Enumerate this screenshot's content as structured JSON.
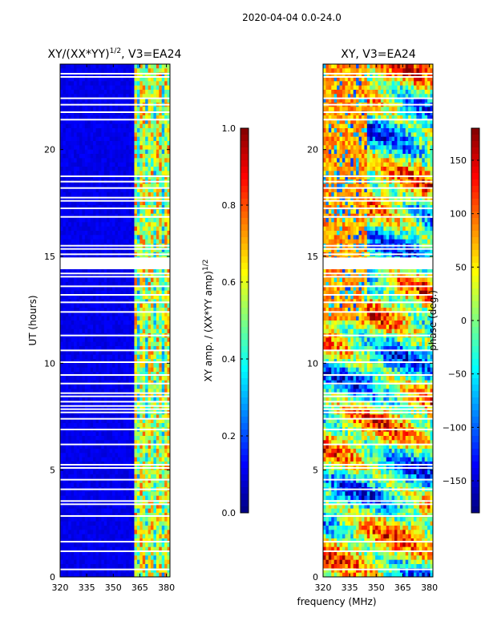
{
  "figure": {
    "suptitle": "2020-04-04 0.0-24.0",
    "xlabel": "frequency (MHz)",
    "ylabel": "UT (hours)"
  },
  "chart_data": [
    {
      "type": "heatmap",
      "name": "amplitude-ratio",
      "title": "XY/(XX*YY)",
      "title_sup": "1/2",
      "title_suffix": ", V3=EA24",
      "xlim": [
        320,
        382
      ],
      "ylim": [
        0,
        24
      ],
      "xticks": [
        320,
        335,
        350,
        365,
        380
      ],
      "yticks": [
        0,
        5,
        10,
        15,
        20
      ],
      "ytick_labels": [
        "0",
        "5",
        "10",
        "15",
        "20"
      ],
      "colormap": "jet",
      "colorbar": {
        "label": "XY amp. / (XX*YY amp)",
        "label_sup": "1/2",
        "range": [
          0.0,
          1.0
        ],
        "ticks": [
          0.0,
          0.2,
          0.4,
          0.6,
          0.8,
          1.0
        ],
        "tick_labels": [
          "0.0",
          "0.2",
          "0.4",
          "0.6",
          "0.8",
          "1.0"
        ]
      },
      "low_band_level": 0.08,
      "high_band_start_mhz": 362,
      "high_band_level_range": [
        0.25,
        0.75
      ],
      "flagged_hours": [
        0.35,
        1.2,
        1.65,
        2.85,
        3.4,
        3.55,
        4.1,
        4.55,
        5.1,
        5.25,
        6.2,
        6.9,
        7.4,
        7.7,
        7.85,
        8.0,
        8.2,
        8.45,
        8.6,
        9.05,
        9.45,
        10.05,
        10.6,
        11.3,
        12.4,
        12.85,
        13.2,
        13.6,
        14.05,
        14.2,
        15.1,
        15.35,
        15.5,
        16.85,
        17.25,
        17.6,
        17.75,
        18.2,
        18.5,
        18.75,
        21.4,
        21.75,
        22.1,
        22.4,
        23.4,
        23.55
      ],
      "flagged_block_hours": [
        14.4,
        14.95
      ]
    },
    {
      "type": "heatmap",
      "name": "xy-phase",
      "title": "XY, V3=EA24",
      "xlim": [
        320,
        382
      ],
      "ylim": [
        0,
        24
      ],
      "xticks": [
        320,
        335,
        350,
        365,
        380
      ],
      "yticks": [
        0,
        5,
        10,
        15,
        20
      ],
      "ytick_labels": [
        "0",
        "5",
        "10",
        "15",
        "20"
      ],
      "colormap": "jet",
      "colorbar": {
        "label": "phase (deg.)",
        "range": [
          -180,
          180
        ],
        "ticks": [
          -150,
          -100,
          -50,
          0,
          50,
          100,
          150
        ],
        "tick_labels": [
          "−150",
          "−100",
          "−50",
          "0",
          "50",
          "100",
          "150"
        ]
      },
      "flagged_hours": [
        0.35,
        1.2,
        1.65,
        2.85,
        3.4,
        3.55,
        4.1,
        4.55,
        5.1,
        5.25,
        6.2,
        6.9,
        7.4,
        7.7,
        7.85,
        8.0,
        8.2,
        8.45,
        8.6,
        9.05,
        9.45,
        10.05,
        10.6,
        11.3,
        12.4,
        12.85,
        13.2,
        13.6,
        14.05,
        14.2,
        15.1,
        15.35,
        15.5,
        16.85,
        17.25,
        17.6,
        17.75,
        18.2,
        18.5,
        18.75,
        21.4,
        21.75,
        22.1,
        22.4,
        23.4,
        23.55
      ],
      "flagged_block_hours": [
        14.4,
        14.95
      ]
    }
  ]
}
